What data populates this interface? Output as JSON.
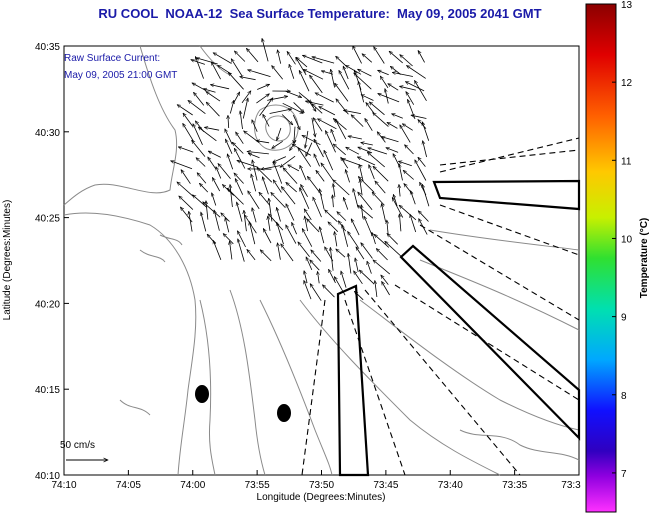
{
  "title": "RU COOL  NOAA-12  Sea Surface Temperature:  May 09, 2005 2041 GMT",
  "annotation": {
    "line1": "Raw Surface Current:",
    "line2": "May 09, 2005 21:00 GMT"
  },
  "scale": {
    "label": "50 cm/s"
  },
  "axes": {
    "xlabel": "Longitude (Degrees:Minutes)",
    "ylabel": "Latitude (Degrees:Minutes)",
    "x_ticks": [
      "74:10",
      "74:05",
      "74:00",
      "73:55",
      "73:50",
      "73:45",
      "73:40",
      "73:35",
      "73:3"
    ],
    "y_ticks": [
      "40:35",
      "40:30",
      "40:25",
      "40:20",
      "40:15",
      "40:10"
    ]
  },
  "colorbar": {
    "label": "Temperature (°C)",
    "ticks": [
      "13",
      "12",
      "11",
      "10",
      "9",
      "8",
      "7"
    ],
    "range": [
      6.5,
      13
    ]
  },
  "colors": {
    "title": "#1a1aa8",
    "land_contours": "#8a8a8a",
    "colorbar_stops": [
      "#8b0000",
      "#ff0000",
      "#ff8c00",
      "#ffd700",
      "#adff2f",
      "#00e000",
      "#00ffc0",
      "#00bfff",
      "#0000ff",
      "#7b00e0",
      "#ff00ff"
    ]
  }
}
